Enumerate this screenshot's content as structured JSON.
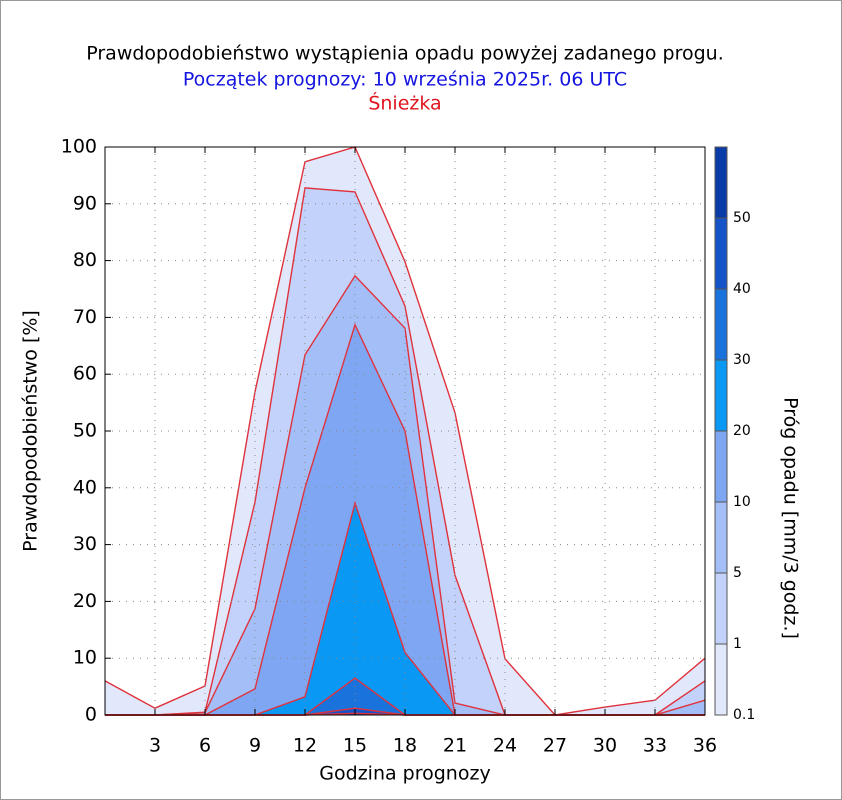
{
  "chart_data": {
    "type": "area",
    "title": "Prawdopodobieństwo wystąpienia opadu powyżej zadanego progu.",
    "subtitle": "Początek prognozy: 10 września 2025r. 06 UTC",
    "location": "Śnieżka",
    "x_label": "Godzina prognozy",
    "y_label": "Prawdopodobieństwo [%]",
    "legend_title": "Próg opadu [mm/3 godz.]",
    "x": [
      0,
      3,
      6,
      9,
      12,
      15,
      18,
      21,
      24,
      27,
      30,
      33,
      36
    ],
    "xlim": [
      0,
      36
    ],
    "xticks": [
      3,
      6,
      9,
      12,
      15,
      18,
      21,
      24,
      27,
      30,
      33,
      36
    ],
    "ylim": [
      0,
      100
    ],
    "yticks": [
      0,
      10,
      20,
      30,
      40,
      50,
      60,
      70,
      80,
      90,
      100
    ],
    "grid": true,
    "line_color": "#e0323c",
    "series": [
      {
        "name": "0.1",
        "color": "#e2e8fb",
        "values": [
          6.0,
          1.2,
          5.1,
          56.9,
          97.4,
          100,
          79.8,
          53.2,
          9.9,
          0,
          1.4,
          2.6,
          10.0
        ]
      },
      {
        "name": "1",
        "color": "#c3d2fa",
        "values": [
          0,
          0,
          0.5,
          37.5,
          92.8,
          92.1,
          72.0,
          24.6,
          0,
          0,
          0,
          0,
          6.0
        ]
      },
      {
        "name": "5",
        "color": "#a4bff7",
        "values": [
          0,
          0,
          0.4,
          18.7,
          63.4,
          77.3,
          68.1,
          2.1,
          0,
          0,
          0,
          0,
          2.6
        ]
      },
      {
        "name": "10",
        "color": "#7ea6f2",
        "values": [
          0,
          0,
          0,
          4.6,
          40.0,
          68.7,
          50.0,
          0,
          0,
          0,
          0,
          0,
          0
        ]
      },
      {
        "name": "20",
        "color": "#0a98f5",
        "values": [
          0,
          0,
          0,
          0,
          3.2,
          37.3,
          11.0,
          0,
          0,
          0,
          0,
          0,
          0
        ]
      },
      {
        "name": "30",
        "color": "#1a72dc",
        "values": [
          0,
          0,
          0,
          0,
          0,
          6.5,
          0,
          0,
          0,
          0,
          0,
          0,
          0
        ]
      },
      {
        "name": "40",
        "color": "#1454c8",
        "values": [
          0,
          0,
          0,
          0,
          0,
          1.2,
          0,
          0,
          0,
          0,
          0,
          0,
          0
        ]
      },
      {
        "name": "50",
        "color": "#0a3ca8",
        "values": [
          0,
          0,
          0,
          0,
          0,
          0.3,
          0,
          0,
          0,
          0,
          0,
          0,
          0
        ]
      }
    ]
  }
}
